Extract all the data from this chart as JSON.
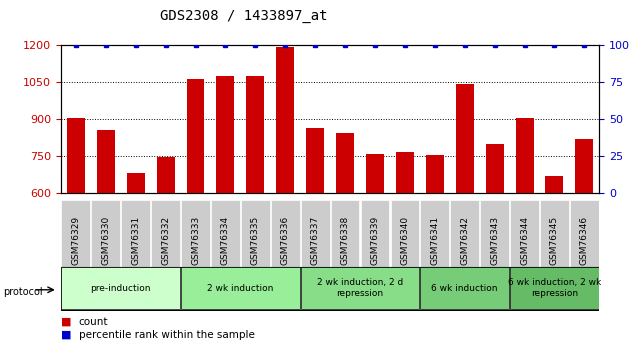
{
  "title": "GDS2308 / 1433897_at",
  "samples": [
    "GSM76329",
    "GSM76330",
    "GSM76331",
    "GSM76332",
    "GSM76333",
    "GSM76334",
    "GSM76335",
    "GSM76336",
    "GSM76337",
    "GSM76338",
    "GSM76339",
    "GSM76340",
    "GSM76341",
    "GSM76342",
    "GSM76343",
    "GSM76344",
    "GSM76345",
    "GSM76346"
  ],
  "counts": [
    905,
    855,
    680,
    745,
    1060,
    1075,
    1075,
    1190,
    865,
    845,
    760,
    765,
    755,
    1040,
    800,
    905,
    670,
    820
  ],
  "percentiles": [
    100,
    100,
    100,
    100,
    100,
    100,
    100,
    100,
    100,
    100,
    100,
    100,
    100,
    100,
    100,
    100,
    100,
    100
  ],
  "bar_color": "#cc0000",
  "dot_color": "#0000cc",
  "ylim_left": [
    600,
    1200
  ],
  "ylim_right": [
    0,
    100
  ],
  "yticks_left": [
    600,
    750,
    900,
    1050,
    1200
  ],
  "yticks_right": [
    0,
    25,
    50,
    75,
    100
  ],
  "groups": [
    {
      "label": "pre-induction",
      "start": 0,
      "end": 4,
      "color": "#ccffcc"
    },
    {
      "label": "2 wk induction",
      "start": 4,
      "end": 8,
      "color": "#99ee99"
    },
    {
      "label": "2 wk induction, 2 d\nrepression",
      "start": 8,
      "end": 12,
      "color": "#88dd88"
    },
    {
      "label": "6 wk induction",
      "start": 12,
      "end": 15,
      "color": "#77cc77"
    },
    {
      "label": "6 wk induction, 2 wk\nrepression",
      "start": 15,
      "end": 18,
      "color": "#66bb66"
    }
  ],
  "legend_count_color": "#cc0000",
  "legend_pct_color": "#0000cc",
  "legend_count_label": "count",
  "legend_pct_label": "percentile rank within the sample",
  "background_color": "#ffffff",
  "tick_label_bg": "#cccccc",
  "protocol_label": "protocol"
}
